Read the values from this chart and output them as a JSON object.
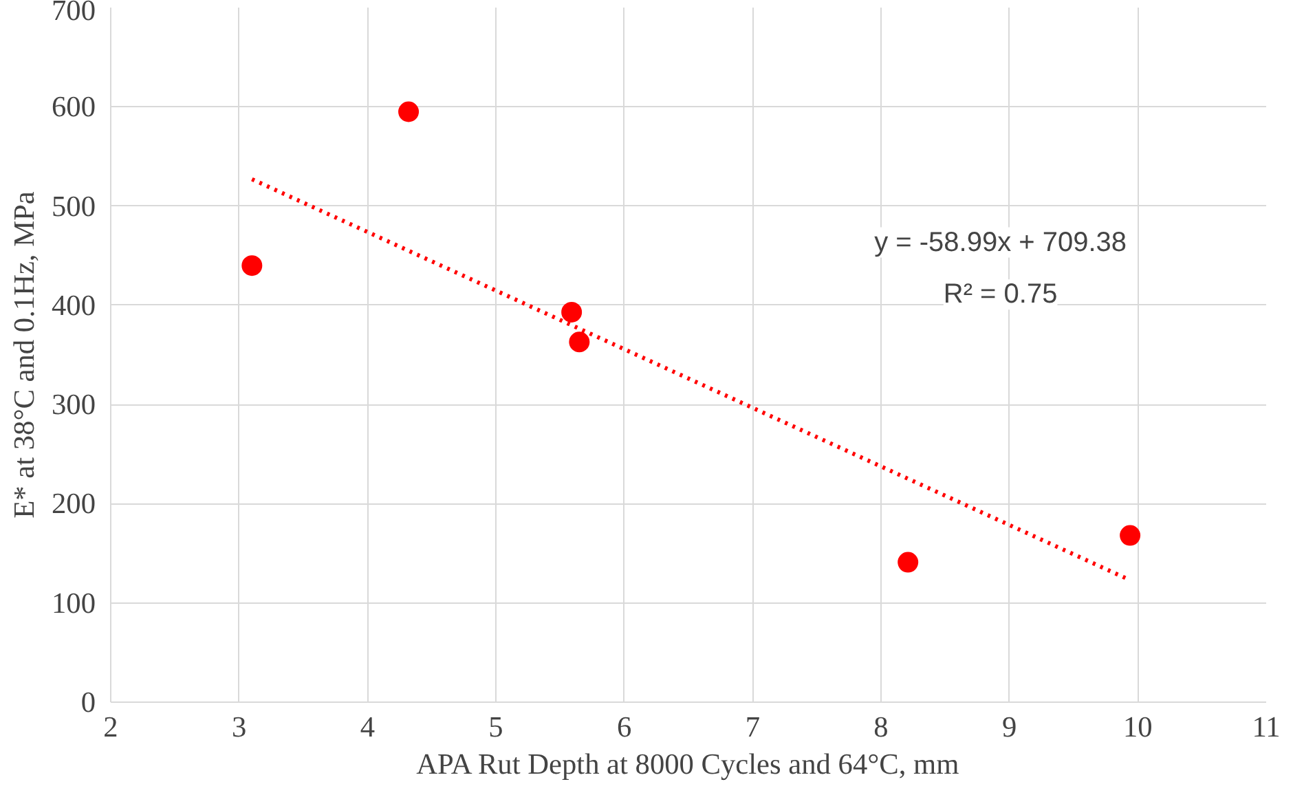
{
  "chart_data": {
    "type": "scatter",
    "xlabel": "APA Rut Depth at 8000 Cycles and 64°C, mm",
    "ylabel": "E* at 38°C and 0.1Hz, MPa",
    "series": [
      {
        "color": "#ff0000",
        "marker": "circle",
        "x": [
          3.1,
          4.32,
          5.59,
          5.65,
          8.21,
          9.94
        ],
        "values": [
          440,
          595,
          393,
          363,
          141,
          168
        ]
      },
      {
        "type": "line",
        "color": "#ff0000",
        "line_style": "dotted",
        "marker": "none",
        "x": [
          3.1,
          9.94
        ],
        "values": [
          527,
          123
        ]
      }
    ],
    "annotations": [
      "y = -58.99x + 709.38",
      "R² = 0.75"
    ],
    "xlim": [
      2,
      11
    ],
    "xticks": [
      2,
      3,
      4,
      5,
      6,
      7,
      8,
      9,
      10,
      11
    ],
    "ylim": [
      0,
      700
    ],
    "yticks": [
      0,
      100,
      200,
      300,
      400,
      500,
      600,
      700
    ],
    "grid": true
  }
}
